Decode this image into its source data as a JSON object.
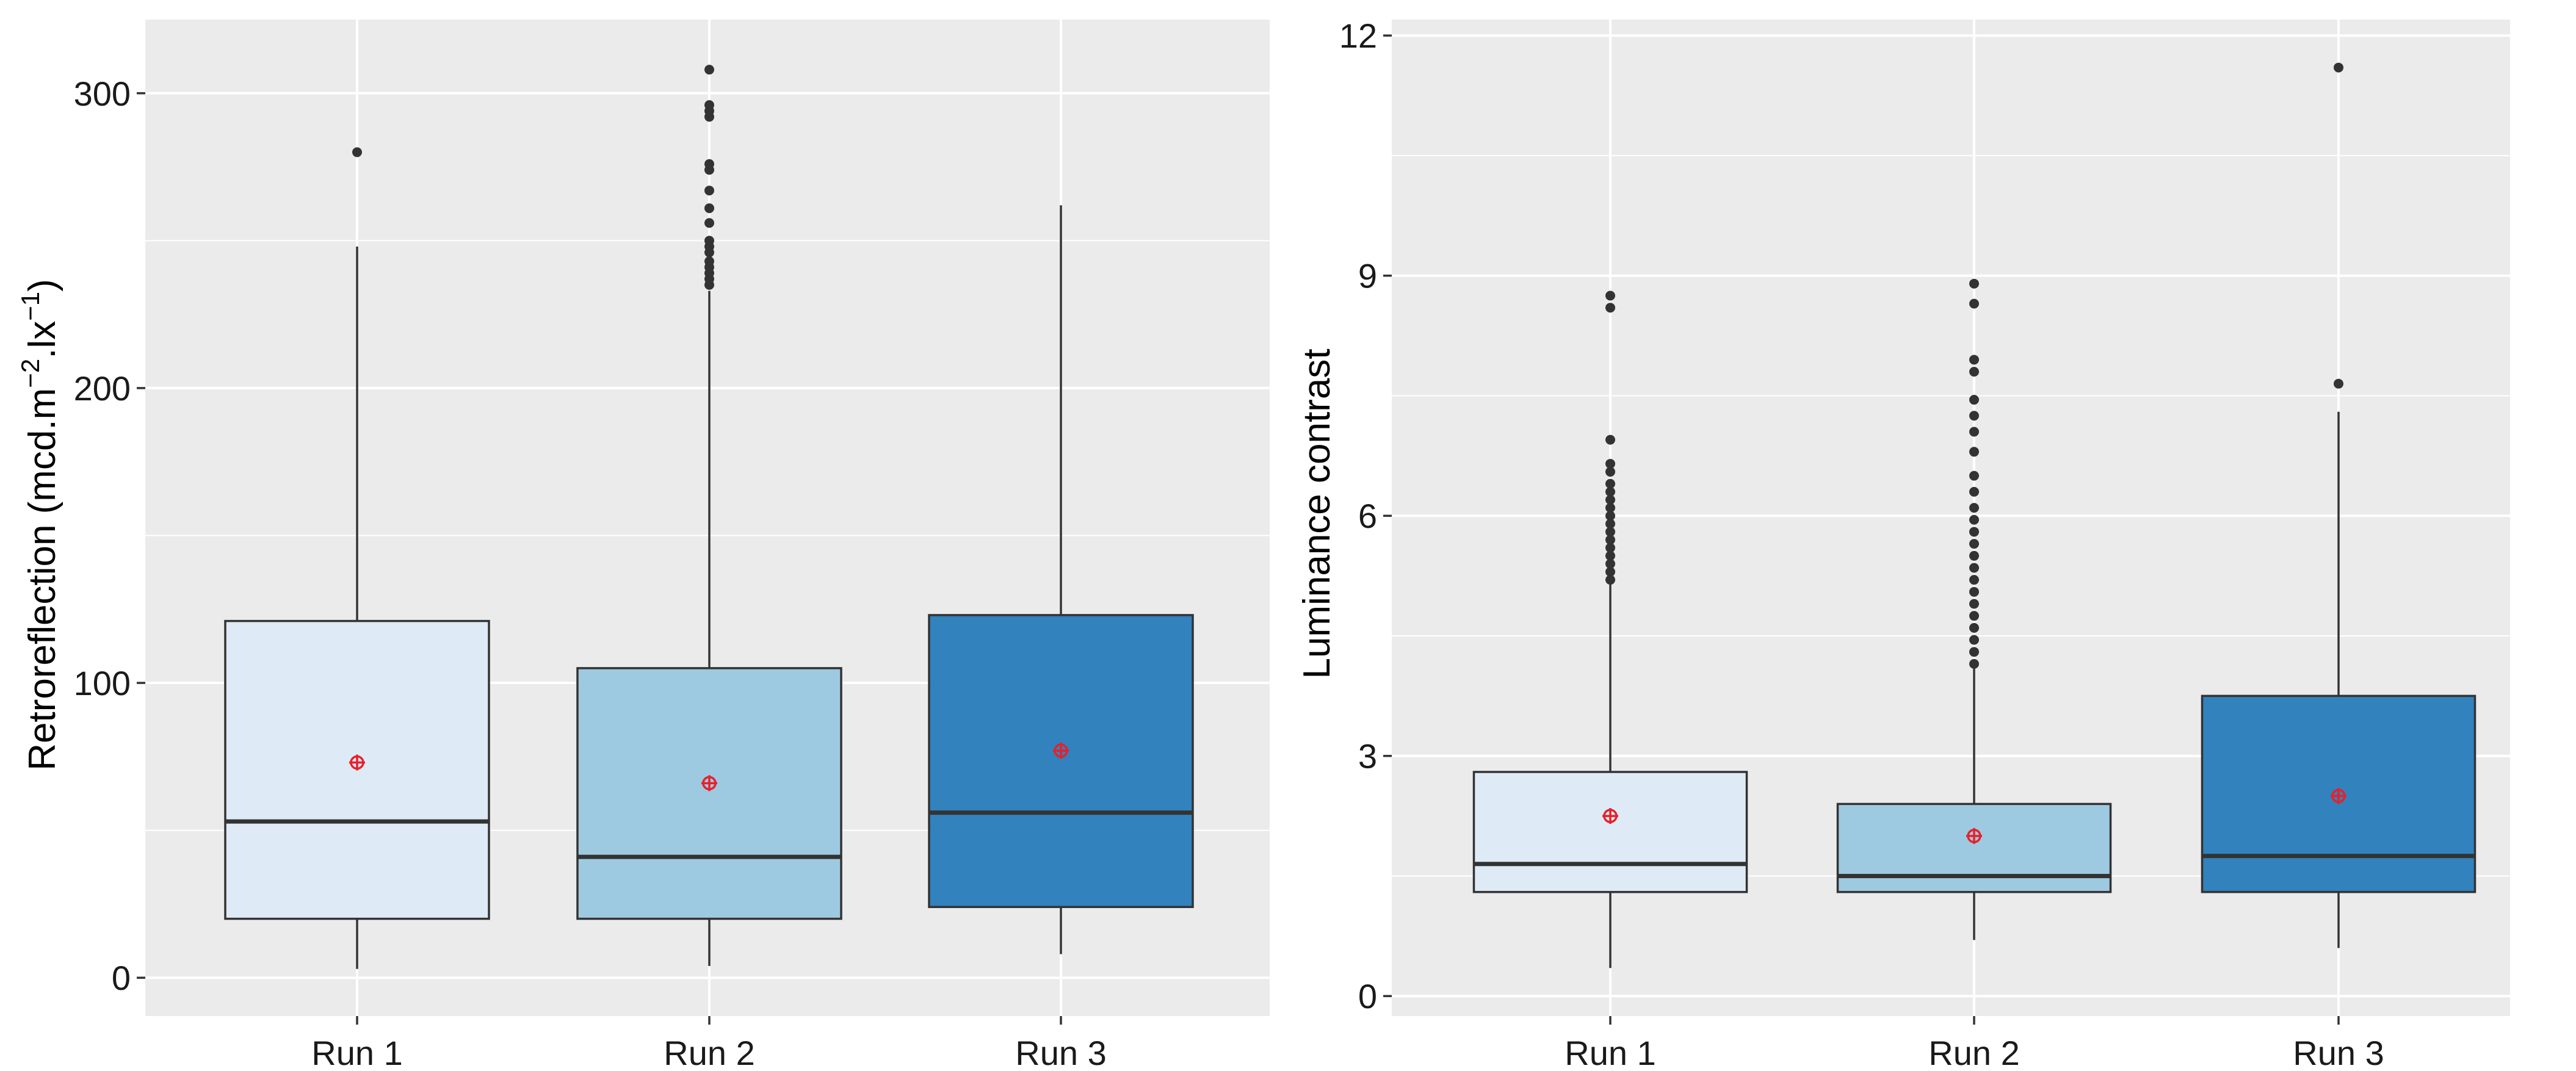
{
  "colors": {
    "panel_bg": "#EBEBEB",
    "grid_major": "#FFFFFF",
    "run1_fill": "#DEEBF7",
    "run2_fill": "#9ECAE1",
    "run3_fill": "#3182BD",
    "box_stroke": "#333333",
    "mean_marker": "#E8202A"
  },
  "chart_data": [
    {
      "type": "boxplot",
      "ylabel_main": "Retroreflection (mcd.m",
      "ylabel_sup1": "−2",
      "ylabel_mid": ".lx",
      "ylabel_sup2": "−1",
      "ylabel_end": ")",
      "xlabel": "",
      "ylim": [
        -13,
        325
      ],
      "yticks": [
        0,
        100,
        200,
        300
      ],
      "ytick_labels": [
        "0",
        "100",
        "200",
        "300"
      ],
      "minor_yticks": [
        50,
        150,
        250
      ],
      "categories": [
        "Run 1",
        "Run 2",
        "Run 3"
      ],
      "series": [
        {
          "name": "Run 1",
          "lower_whisker": 3,
          "q1": 20,
          "median": 53,
          "q3": 121,
          "upper_whisker": 248,
          "mean": 73,
          "outliers": [
            280
          ]
        },
        {
          "name": "Run 2",
          "lower_whisker": 4,
          "q1": 20,
          "median": 41,
          "q3": 105,
          "upper_whisker": 233,
          "mean": 66,
          "outliers": [
            235,
            237,
            239,
            241,
            243,
            246,
            248,
            250,
            256,
            261,
            267,
            274,
            276,
            292,
            294,
            296,
            308
          ]
        },
        {
          "name": "Run 3",
          "lower_whisker": 8,
          "q1": 24,
          "median": 56,
          "q3": 123,
          "upper_whisker": 262,
          "mean": 77,
          "outliers": []
        }
      ]
    },
    {
      "type": "boxplot",
      "ylabel": "Luminance contrast",
      "xlabel": "",
      "ylim": [
        -0.25,
        12.2
      ],
      "yticks": [
        0,
        3,
        6,
        9,
        12
      ],
      "ytick_labels": [
        "0",
        "3",
        "6",
        "9",
        "12"
      ],
      "minor_yticks": [
        1.5,
        4.5,
        7.5,
        10.5
      ],
      "categories": [
        "Run 1",
        "Run 2",
        "Run 3"
      ],
      "series": [
        {
          "name": "Run 1",
          "lower_whisker": 0.35,
          "q1": 1.3,
          "median": 1.65,
          "q3": 2.8,
          "upper_whisker": 5.15,
          "mean": 2.25,
          "outliers": [
            5.2,
            5.3,
            5.4,
            5.5,
            5.6,
            5.7,
            5.8,
            5.9,
            6.0,
            6.1,
            6.2,
            6.3,
            6.4,
            6.55,
            6.65,
            6.95,
            8.6,
            8.75
          ]
        },
        {
          "name": "Run 2",
          "lower_whisker": 0.7,
          "q1": 1.3,
          "median": 1.5,
          "q3": 2.4,
          "upper_whisker": 4.1,
          "mean": 2.0,
          "outliers": [
            4.15,
            4.3,
            4.45,
            4.6,
            4.75,
            4.9,
            5.05,
            5.2,
            5.35,
            5.5,
            5.65,
            5.8,
            5.95,
            6.1,
            6.3,
            6.5,
            6.8,
            7.05,
            7.25,
            7.45,
            7.8,
            7.95,
            8.65,
            8.9
          ]
        },
        {
          "name": "Run 3",
          "lower_whisker": 0.6,
          "q1": 1.3,
          "median": 1.75,
          "q3": 3.75,
          "upper_whisker": 7.3,
          "mean": 2.5,
          "outliers": [
            7.65,
            11.6
          ]
        }
      ]
    }
  ]
}
